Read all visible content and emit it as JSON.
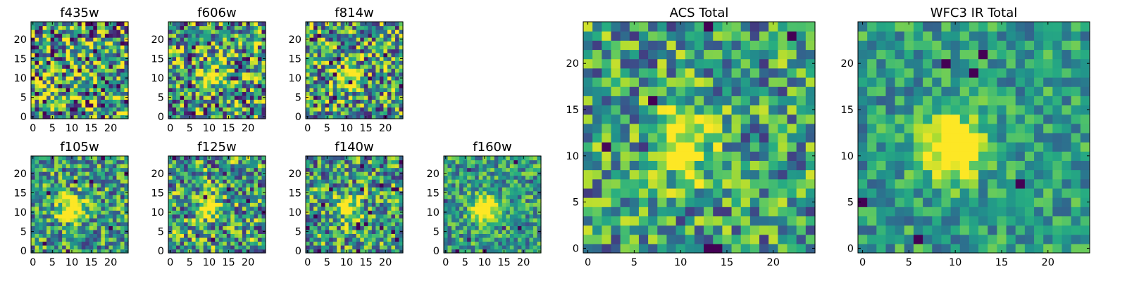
{
  "chart_data": [
    {
      "type": "heatmap",
      "title": "f435w",
      "size": "small",
      "xticks": [
        0,
        5,
        10,
        15,
        20
      ],
      "yticks": [
        0,
        5,
        10,
        15,
        20
      ],
      "xlim": [
        -0.5,
        24.5
      ],
      "ylim": [
        -0.5,
        24.5
      ],
      "source_center": null,
      "blob_strength": 0.0,
      "noise": 0.85,
      "seed": 11
    },
    {
      "type": "heatmap",
      "title": "f606w",
      "size": "small",
      "xticks": [
        0,
        5,
        10,
        15,
        20
      ],
      "yticks": [
        0,
        5,
        10,
        15,
        20
      ],
      "xlim": [
        -0.5,
        24.5
      ],
      "ylim": [
        -0.5,
        24.5
      ],
      "source_center": [
        10,
        11
      ],
      "blob_strength": 0.55,
      "noise": 0.75,
      "seed": 23
    },
    {
      "type": "heatmap",
      "title": "f814w",
      "size": "small",
      "xticks": [
        0,
        5,
        10,
        15,
        20
      ],
      "yticks": [
        0,
        5,
        10,
        15,
        20
      ],
      "xlim": [
        -0.5,
        24.5
      ],
      "ylim": [
        -0.5,
        24.5
      ],
      "source_center": [
        10,
        11
      ],
      "blob_strength": 0.7,
      "noise": 0.7,
      "seed": 37
    },
    {
      "type": "heatmap",
      "title": "f105w",
      "size": "small",
      "xticks": [
        0,
        5,
        10,
        15,
        20
      ],
      "yticks": [
        0,
        5,
        10,
        15,
        20
      ],
      "xlim": [
        -0.5,
        24.5
      ],
      "ylim": [
        -0.5,
        24.5
      ],
      "source_center": [
        10,
        11
      ],
      "blob_strength": 0.75,
      "noise": 0.55,
      "seed": 41
    },
    {
      "type": "heatmap",
      "title": "f125w",
      "size": "small",
      "xticks": [
        0,
        5,
        10,
        15,
        20
      ],
      "yticks": [
        0,
        5,
        10,
        15,
        20
      ],
      "xlim": [
        -0.5,
        24.5
      ],
      "ylim": [
        -0.5,
        24.5
      ],
      "source_center": [
        10,
        11
      ],
      "blob_strength": 0.6,
      "noise": 0.65,
      "seed": 53
    },
    {
      "type": "heatmap",
      "title": "f140w",
      "size": "small",
      "xticks": [
        0,
        5,
        10,
        15,
        20
      ],
      "yticks": [
        0,
        5,
        10,
        15,
        20
      ],
      "xlim": [
        -0.5,
        24.5
      ],
      "ylim": [
        -0.5,
        24.5
      ],
      "source_center": [
        10,
        11
      ],
      "blob_strength": 0.65,
      "noise": 0.6,
      "seed": 67
    },
    {
      "type": "heatmap",
      "title": "f160w",
      "size": "small",
      "xticks": [
        0,
        5,
        10,
        15,
        20
      ],
      "yticks": [
        0,
        5,
        10,
        15,
        20
      ],
      "xlim": [
        -0.5,
        24.5
      ],
      "ylim": [
        -0.5,
        24.5
      ],
      "source_center": [
        10,
        11
      ],
      "blob_strength": 0.8,
      "noise": 0.45,
      "seed": 79
    },
    {
      "type": "heatmap",
      "title": "ACS Total",
      "size": "large",
      "xticks": [
        0,
        5,
        10,
        15,
        20
      ],
      "yticks": [
        0,
        5,
        10,
        15,
        20
      ],
      "xlim": [
        -0.5,
        24.5
      ],
      "ylim": [
        -0.5,
        24.5
      ],
      "source_center": [
        10,
        11
      ],
      "blob_strength": 0.7,
      "noise": 0.55,
      "seed": 97
    },
    {
      "type": "heatmap",
      "title": "WFC3 IR Total",
      "size": "large",
      "xticks": [
        0,
        5,
        10,
        15,
        20
      ],
      "yticks": [
        0,
        5,
        10,
        15,
        20
      ],
      "xlim": [
        -0.5,
        24.5
      ],
      "ylim": [
        -0.5,
        24.5
      ],
      "source_center": [
        10,
        11
      ],
      "blob_strength": 0.85,
      "noise": 0.35,
      "seed": 113
    }
  ],
  "colormap": "viridis",
  "grid_size": 25,
  "axes_color": "#000000"
}
